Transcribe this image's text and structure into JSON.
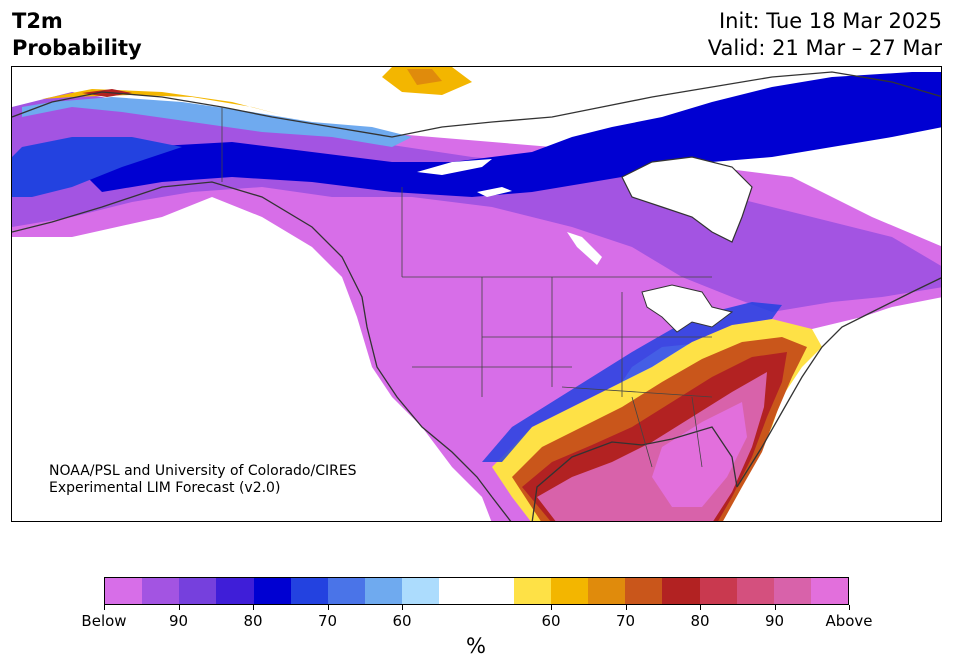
{
  "header": {
    "variable": "T2m",
    "product": "Probability",
    "init": "Init: Tue 18 Mar 2025",
    "valid": "Valid: 21 Mar – 27 Mar"
  },
  "credit": {
    "line1": "NOAA/PSL and University of Colorado/CIRES",
    "line2": "Experimental LIM Forecast (v2.0)"
  },
  "colorbar": {
    "unit": "%",
    "colors": [
      "#d76ee8",
      "#a354e2",
      "#7640dd",
      "#3f1ed8",
      "#0000d2",
      "#2342e0",
      "#4a74e8",
      "#6faaef",
      "#acdcfd",
      "#ffffff",
      "#ffffff",
      "#fee146",
      "#f3b600",
      "#e08b0c",
      "#c9561b",
      "#b22222",
      "#c9394f",
      "#d4507e",
      "#d862aa",
      "#e26fdc"
    ],
    "ticks": [
      "Below",
      "90",
      "80",
      "70",
      "60",
      "60",
      "70",
      "80",
      "90",
      "Above"
    ]
  },
  "map": {
    "features": [
      "below-normal-west-and-central",
      "above-normal-southeast",
      "below-normal-alaska-north",
      "above-normal-arctic-coast"
    ],
    "colors": {
      "below_strong": "#d76ee8",
      "below_mid": "#a354e2",
      "blue_deep": "#0000d2",
      "above_strong": "#d862aa",
      "above_red": "#b22222",
      "coast_line": "#333333"
    }
  }
}
